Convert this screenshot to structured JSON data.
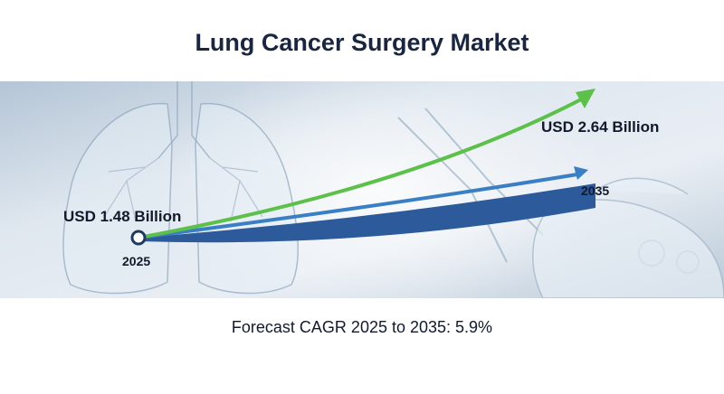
{
  "title": "Lung Cancer Surgery Market",
  "footer": "Forecast CAGR 2025 to 2035: 5.9%",
  "colors": {
    "title": "#1a2540",
    "green_arrow": "#5cc04a",
    "blue_arrow": "#3a7fc4",
    "navy_band": "#2d5a9a",
    "banner_bg": "#c9d6e3"
  },
  "chart_data": {
    "type": "line",
    "x": [
      "2025",
      "2035"
    ],
    "series": [
      {
        "values": [
          1.48,
          2.64
        ]
      }
    ],
    "value_labels": [
      "USD 1.48 Billion",
      "USD 2.64 Billion"
    ],
    "cagr_text": "Forecast CAGR 2025 to 2035: 5.9%"
  }
}
